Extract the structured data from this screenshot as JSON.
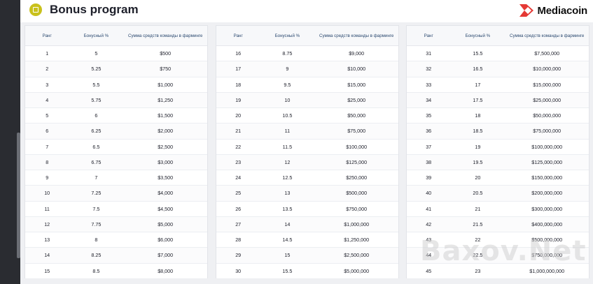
{
  "header": {
    "title": "Bonus program",
    "brand": "Mediacoin",
    "accent_color": "#e53935",
    "badge_color": "#c9c11c"
  },
  "columns": {
    "rank": "Ранг",
    "bonus": "Бонусный %",
    "sum": "Сумма средств команды в фарминге"
  },
  "tables": [
    {
      "rows": [
        [
          "1",
          "5",
          "$500"
        ],
        [
          "2",
          "5.25",
          "$750"
        ],
        [
          "3",
          "5.5",
          "$1,000"
        ],
        [
          "4",
          "5.75",
          "$1,250"
        ],
        [
          "5",
          "6",
          "$1,500"
        ],
        [
          "6",
          "6.25",
          "$2,000"
        ],
        [
          "7",
          "6.5",
          "$2,500"
        ],
        [
          "8",
          "6.75",
          "$3,000"
        ],
        [
          "9",
          "7",
          "$3,500"
        ],
        [
          "10",
          "7.25",
          "$4,000"
        ],
        [
          "11",
          "7.5",
          "$4,500"
        ],
        [
          "12",
          "7.75",
          "$5,000"
        ],
        [
          "13",
          "8",
          "$6,000"
        ],
        [
          "14",
          "8.25",
          "$7,000"
        ],
        [
          "15",
          "8.5",
          "$8,000"
        ]
      ]
    },
    {
      "rows": [
        [
          "16",
          "8.75",
          "$9,000"
        ],
        [
          "17",
          "9",
          "$10,000"
        ],
        [
          "18",
          "9.5",
          "$15,000"
        ],
        [
          "19",
          "10",
          "$25,000"
        ],
        [
          "20",
          "10.5",
          "$50,000"
        ],
        [
          "21",
          "11",
          "$75,000"
        ],
        [
          "22",
          "11.5",
          "$100,000"
        ],
        [
          "23",
          "12",
          "$125,000"
        ],
        [
          "24",
          "12.5",
          "$250,000"
        ],
        [
          "25",
          "13",
          "$500,000"
        ],
        [
          "26",
          "13.5",
          "$750,000"
        ],
        [
          "27",
          "14",
          "$1,000,000"
        ],
        [
          "28",
          "14.5",
          "$1,250,000"
        ],
        [
          "29",
          "15",
          "$2,500,000"
        ],
        [
          "30",
          "15.5",
          "$5,000,000"
        ]
      ]
    },
    {
      "rows": [
        [
          "31",
          "15.5",
          "$7,500,000"
        ],
        [
          "32",
          "16.5",
          "$10,000,000"
        ],
        [
          "33",
          "17",
          "$15,000,000"
        ],
        [
          "34",
          "17.5",
          "$25,000,000"
        ],
        [
          "35",
          "18",
          "$50,000,000"
        ],
        [
          "36",
          "18.5",
          "$75,000,000"
        ],
        [
          "37",
          "19",
          "$100,000,000"
        ],
        [
          "38",
          "19.5",
          "$125,000,000"
        ],
        [
          "39",
          "20",
          "$150,000,000"
        ],
        [
          "40",
          "20.5",
          "$200,000,000"
        ],
        [
          "41",
          "21",
          "$300,000,000"
        ],
        [
          "42",
          "21.5",
          "$400,000,000"
        ],
        [
          "43",
          "22",
          "$500,000,000"
        ],
        [
          "44",
          "22.5",
          "$750,000,000"
        ],
        [
          "45",
          "23",
          "$1,000,000,000"
        ]
      ]
    }
  ],
  "watermark": "Baxov.Net"
}
